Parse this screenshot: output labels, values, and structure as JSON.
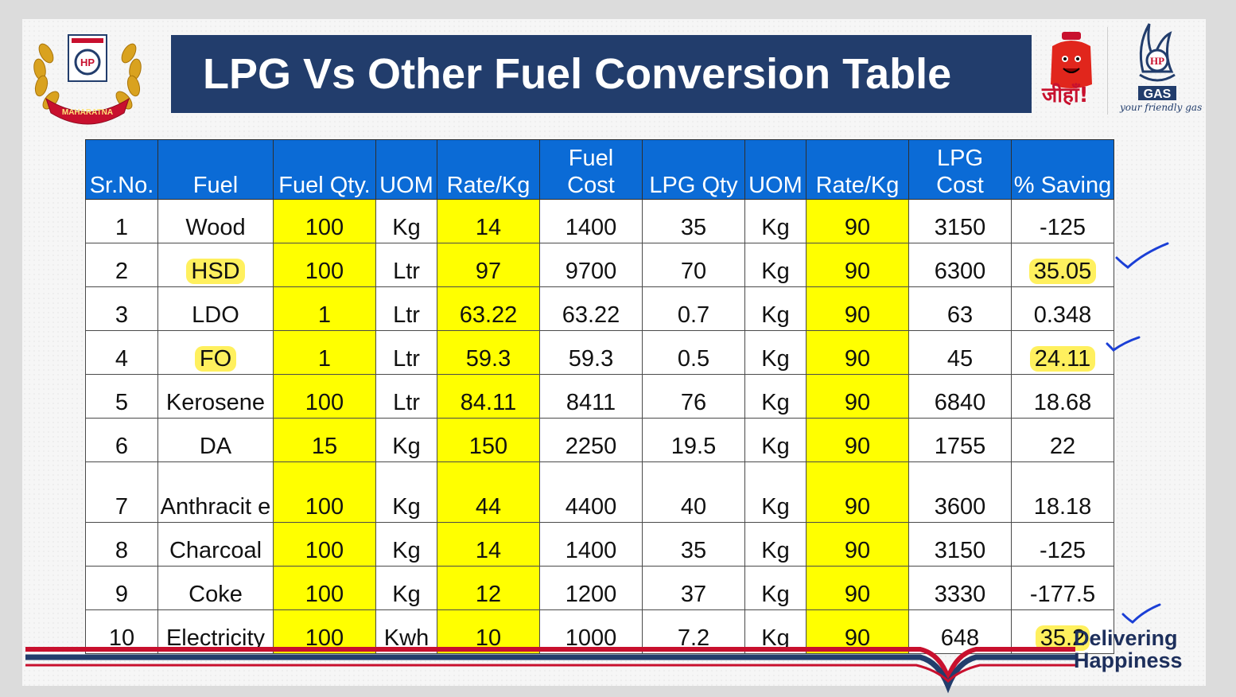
{
  "header": {
    "title": "LPG Vs Other Fuel Conversion Table",
    "emblem_text": "MAHARATNA",
    "emblem_logo": "HP",
    "mascot_text": "जीहाँ!",
    "brand_logo": "HP",
    "brand_name": "GAS",
    "tagline": "your friendly gas"
  },
  "table": {
    "headers": [
      [
        "",
        "Sr.No."
      ],
      [
        "",
        "Fuel"
      ],
      [
        "",
        "Fuel Qty."
      ],
      [
        "",
        "UOM"
      ],
      [
        "",
        "Rate/Kg"
      ],
      [
        "Fuel",
        "Cost"
      ],
      [
        "",
        "LPG Qty"
      ],
      [
        "",
        "UOM"
      ],
      [
        "",
        "Rate/Kg"
      ],
      [
        "LPG",
        "Cost"
      ],
      [
        "",
        "% Saving"
      ]
    ],
    "rows": [
      [
        "1",
        "Wood",
        "100",
        "Kg",
        "14",
        "1400",
        "35",
        "Kg",
        "90",
        "3150",
        "-125"
      ],
      [
        "2",
        "HSD",
        "100",
        "Ltr",
        "97",
        "9700",
        "70",
        "Kg",
        "90",
        "6300",
        "35.05"
      ],
      [
        "3",
        "LDO",
        "1",
        "Ltr",
        "63.22",
        "63.22",
        "0.7",
        "Kg",
        "90",
        "63",
        "0.348"
      ],
      [
        "4",
        "FO",
        "1",
        "Ltr",
        "59.3",
        "59.3",
        "0.5",
        "Kg",
        "90",
        "45",
        "24.11"
      ],
      [
        "5",
        "Kerosene",
        "100",
        "Ltr",
        "84.11",
        "8411",
        "76",
        "Kg",
        "90",
        "6840",
        "18.68"
      ],
      [
        "6",
        "DA",
        "15",
        "Kg",
        "150",
        "2250",
        "19.5",
        "Kg",
        "90",
        "1755",
        "22"
      ],
      [
        "7",
        "Anthracit e",
        "100",
        "Kg",
        "44",
        "4400",
        "40",
        "Kg",
        "90",
        "3600",
        "18.18"
      ],
      [
        "8",
        "Charcoal",
        "100",
        "Kg",
        "14",
        "1400",
        "35",
        "Kg",
        "90",
        "3150",
        "-125"
      ],
      [
        "9",
        "Coke",
        "100",
        "Kg",
        "12",
        "1200",
        "37",
        "Kg",
        "90",
        "3330",
        "-177.5"
      ],
      [
        "10",
        "Electricity",
        "100",
        "Kwh",
        "10",
        "1000",
        "7.2",
        "Kg",
        "90",
        "648",
        "35.2"
      ]
    ],
    "highlighted_columns": [
      2,
      4,
      8
    ],
    "marker_highlights": [
      "HSD",
      "FO",
      "35.05",
      "24.11",
      "35.2"
    ]
  },
  "footer": {
    "slogan_line1": "Delivering",
    "slogan_line2": "Happiness"
  },
  "colors": {
    "title_bar": "#223d6c",
    "header_blue": "#0b6bd6",
    "highlight_yellow": "#ffff00",
    "tick_blue": "#1b3fd6",
    "stripe_red": "#c8102e",
    "stripe_blue": "#223d6c"
  },
  "icons": [
    "maharatna-emblem-icon",
    "lpg-cylinder-mascot-icon",
    "hp-gas-flame-logo-icon",
    "check-mark-icon"
  ]
}
